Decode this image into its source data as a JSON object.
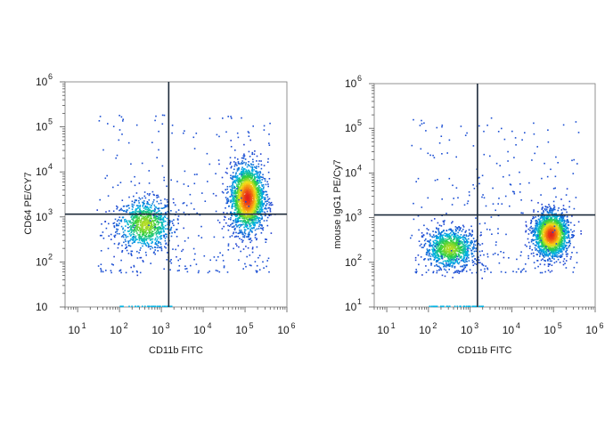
{
  "chart_data": [
    {
      "type": "scatter",
      "style": "flow-cytometry density dot plot with quadrant gates",
      "xlabel": "CD11b FITC",
      "ylabel": "CD64 PE/CY7",
      "x_scale": "log",
      "y_scale": "log",
      "xlim": [
        5,
        1000000
      ],
      "ylim": [
        10,
        1000000
      ],
      "x_ticks": [
        {
          "value": 10,
          "base": "10",
          "exp": "1"
        },
        {
          "value": 100,
          "base": "10",
          "exp": "2"
        },
        {
          "value": 1000,
          "base": "10",
          "exp": "3"
        },
        {
          "value": 10000,
          "base": "10",
          "exp": "4"
        },
        {
          "value": 100000,
          "base": "10",
          "exp": "5"
        },
        {
          "value": 1000000,
          "base": "10",
          "exp": "6"
        }
      ],
      "y_ticks": [
        {
          "value": 10,
          "base": "10",
          "exp": ""
        },
        {
          "value": 100,
          "base": "10",
          "exp": "2"
        },
        {
          "value": 1000,
          "base": "10",
          "exp": "3"
        },
        {
          "value": 10000,
          "base": "10",
          "exp": "4"
        },
        {
          "value": 100000,
          "base": "10",
          "exp": "5"
        },
        {
          "value": 1000000,
          "base": "10",
          "exp": "6"
        }
      ],
      "gate": {
        "x": 1500,
        "y": 1150
      },
      "populations": [
        {
          "name": "",
          "x_center": 400,
          "y_center": 700,
          "x_spread_decades": 0.33,
          "y_spread_decades": 0.28,
          "count": 900,
          "peak_density": "medium"
        },
        {
          "name": "",
          "x_center": 110000,
          "y_center": 2700,
          "x_spread_decades": 0.2,
          "y_spread_decades": 0.36,
          "count": 2100,
          "peak_density": "high"
        }
      ],
      "scatter_background_count": 320,
      "grid": false,
      "colormap": [
        "#1f3cd0",
        "#00b4e6",
        "#2fcf3c",
        "#f4e21a",
        "#f57f10",
        "#e0141c"
      ]
    },
    {
      "type": "scatter",
      "style": "flow-cytometry density dot plot with quadrant gates",
      "xlabel": "CD11b FITC",
      "ylabel": "mouse IgG1 PE/Cy7",
      "x_scale": "log",
      "y_scale": "log",
      "xlim": [
        5,
        1000000
      ],
      "ylim": [
        10,
        1000000
      ],
      "x_ticks": [
        {
          "value": 10,
          "base": "10",
          "exp": "1"
        },
        {
          "value": 100,
          "base": "10",
          "exp": "2"
        },
        {
          "value": 1000,
          "base": "10",
          "exp": "3"
        },
        {
          "value": 10000,
          "base": "10",
          "exp": "4"
        },
        {
          "value": 100000,
          "base": "10",
          "exp": "5"
        },
        {
          "value": 1000000,
          "base": "10",
          "exp": "6"
        }
      ],
      "y_ticks": [
        {
          "value": 10,
          "base": "10",
          "exp": "1"
        },
        {
          "value": 100,
          "base": "10",
          "exp": "2"
        },
        {
          "value": 1000,
          "base": "10",
          "exp": "3"
        },
        {
          "value": 10000,
          "base": "10",
          "exp": "4"
        },
        {
          "value": 100000,
          "base": "10",
          "exp": "5"
        },
        {
          "value": 1000000,
          "base": "10",
          "exp": "6"
        }
      ],
      "gate": {
        "x": 1500,
        "y": 1150
      },
      "populations": [
        {
          "name": "",
          "x_center": 320,
          "y_center": 210,
          "x_spread_decades": 0.3,
          "y_spread_decades": 0.22,
          "count": 1000,
          "peak_density": "medium"
        },
        {
          "name": "",
          "x_center": 85000,
          "y_center": 430,
          "x_spread_decades": 0.2,
          "y_spread_decades": 0.24,
          "count": 2000,
          "peak_density": "high"
        }
      ],
      "scatter_background_count": 300,
      "grid": false,
      "colormap": [
        "#1f3cd0",
        "#00b4e6",
        "#2fcf3c",
        "#f4e21a",
        "#f57f10",
        "#e0141c"
      ]
    }
  ]
}
